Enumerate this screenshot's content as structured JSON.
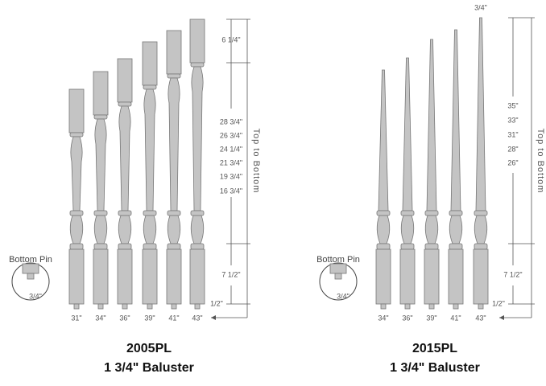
{
  "panels": [
    {
      "title": "2005PL",
      "subtitle": "1 3/4\" Baluster",
      "heights": [
        "31\"",
        "34\"",
        "36\"",
        "39\"",
        "41\"",
        "43\""
      ],
      "top_dimension": "6 1/4\"",
      "middle_dimensions": [
        "28 3/4\"",
        "26 3/4\"",
        "24 1/4\"",
        "21 3/4\"",
        "19 3/4\"",
        "16 3/4\""
      ],
      "bottom_dimension": "7 1/2\"",
      "pin_dimension": "1/2\"",
      "axis_label": "Top to Bottom",
      "pin": {
        "title": "Bottom Pin",
        "size": "3/4\""
      }
    },
    {
      "title": "2015PL",
      "subtitle": "1 3/4\" Baluster",
      "heights": [
        "34\"",
        "36\"",
        "39\"",
        "41\"",
        "43\""
      ],
      "top_dimension": "3/4\"",
      "middle_dimensions": [
        "35\"",
        "33\"",
        "31\"",
        "28\"",
        "26\""
      ],
      "bottom_dimension": "7 1/2\"",
      "pin_dimension": "1/2\"",
      "axis_label": "Top to Bottom",
      "pin": {
        "title": "Bottom Pin",
        "size": "3/4\""
      }
    }
  ]
}
